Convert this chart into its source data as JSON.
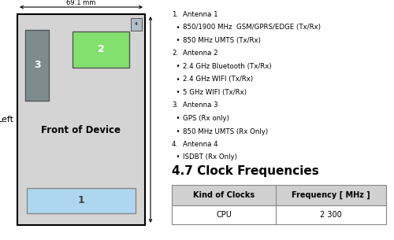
{
  "bg_color": "#ffffff",
  "device_color": "#d4d4d4",
  "device_border": "#000000",
  "box1_color": "#aed6f1",
  "box1_label": "1",
  "box2_color": "#82e06e",
  "box2_label": "2",
  "box3_color": "#7f8c8d",
  "box3_label": "3",
  "box4_color": "#b0bec5",
  "box4_label": "4",
  "front_label": "Front of Device",
  "left_label": "Left",
  "dim_label": "69.1 mm",
  "antenna_lines": [
    [
      "1.",
      "Antenna 1",
      false
    ],
    [
      "  •",
      "850/1900 MHz  GSM/GPRS/EDGE (Tx/Rx)",
      false
    ],
    [
      "  •",
      "850 MHz UMTS (Tx/Rx)",
      false
    ],
    [
      "2.",
      "Antenna 2",
      false
    ],
    [
      "  •",
      "2.4 GHz Bluetooth (Tx/Rx)",
      false
    ],
    [
      "  •",
      "2.4 GHz WIFI (Tx/Rx)",
      false
    ],
    [
      "  •",
      "5 GHz WIFI (Tx/Rx)",
      false
    ],
    [
      "3.",
      "Antenna 3",
      false
    ],
    [
      "  •",
      "GPS (Rx only)",
      false
    ],
    [
      "  •",
      "850 MHz UMTS (Rx Only)",
      false
    ],
    [
      "4.",
      "Antenna 4",
      false
    ],
    [
      "  •",
      "ISDBT (Rx Only)",
      false
    ]
  ],
  "section_title": "4.7 Clock Frequencies",
  "table_headers": [
    "Kind of Clocks",
    "Frequency [ MHz ]"
  ],
  "table_row": [
    "CPU",
    "2 300"
  ],
  "table_header_color": "#d0d0d0",
  "table_row_color": "#ffffff"
}
